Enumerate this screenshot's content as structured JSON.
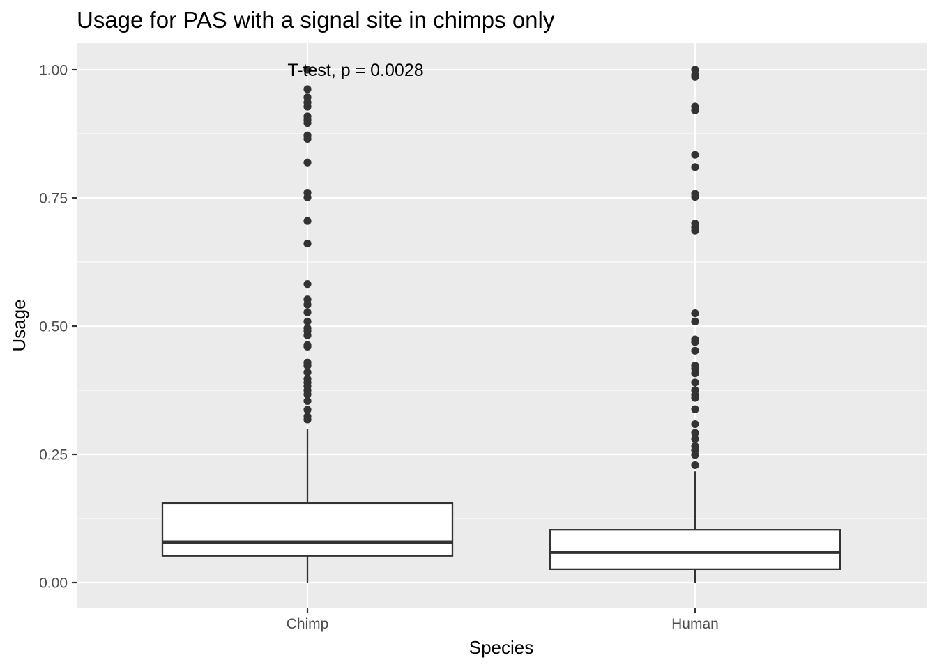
{
  "chart_data": {
    "type": "box",
    "title": "Usage for PAS with a signal site in chimps only",
    "xlabel": "Species",
    "ylabel": "Usage",
    "categories": [
      "Chimp",
      "Human"
    ],
    "ylim": [
      -0.05,
      1.05
    ],
    "yticks": [
      0.0,
      0.25,
      0.5,
      0.75,
      1.0
    ],
    "ytick_labels": [
      "0.00",
      "0.25",
      "0.50",
      "0.75",
      "1.00"
    ],
    "grid": true,
    "annotation": "T-test, p = 0.0028",
    "boxes": [
      {
        "category": "Chimp",
        "whisker_low": 0.0,
        "q1": 0.052,
        "median": 0.079,
        "q3": 0.155,
        "whisker_high": 0.3,
        "outliers": [
          0.318,
          0.324,
          0.337,
          0.354,
          0.367,
          0.375,
          0.383,
          0.39,
          0.397,
          0.41,
          0.423,
          0.429,
          0.46,
          0.463,
          0.482,
          0.49,
          0.496,
          0.509,
          0.527,
          0.542,
          0.552,
          0.582,
          0.661,
          0.705,
          0.751,
          0.76,
          0.819,
          0.865,
          0.872,
          0.896,
          0.902,
          0.909,
          0.928,
          0.936,
          0.946,
          0.962,
          1.0
        ]
      },
      {
        "category": "Human",
        "whisker_low": 0.0,
        "q1": 0.026,
        "median": 0.059,
        "q3": 0.103,
        "whisker_high": 0.217,
        "outliers": [
          0.229,
          0.249,
          0.258,
          0.266,
          0.28,
          0.292,
          0.309,
          0.338,
          0.36,
          0.366,
          0.375,
          0.39,
          0.408,
          0.417,
          0.423,
          0.452,
          0.469,
          0.474,
          0.509,
          0.525,
          0.686,
          0.693,
          0.7,
          0.752,
          0.758,
          0.81,
          0.834,
          0.921,
          0.928,
          0.986,
          0.99,
          1.0
        ]
      }
    ],
    "colors": {
      "panel": "#ebebeb",
      "grid": "#ffffff",
      "box_fill": "#ffffff",
      "box_line": "#333333",
      "point": "#333333",
      "tick": "#333333"
    }
  }
}
